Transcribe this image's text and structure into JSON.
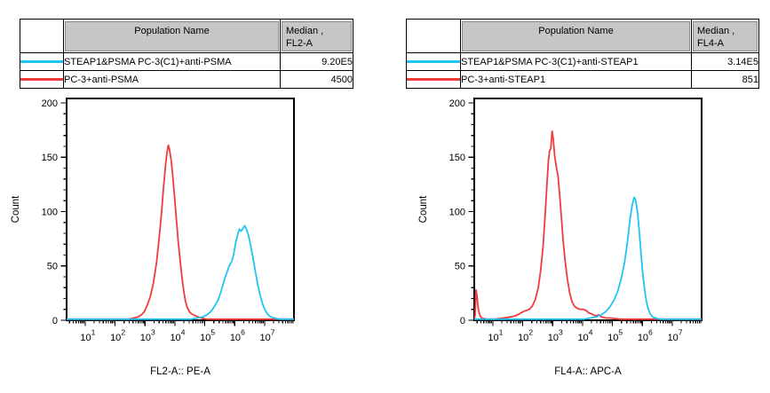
{
  "report": {
    "panels": [
      {
        "table": {
          "population_header": "Population Name",
          "median_header_line1": "Median ,",
          "median_header_line2": "FL2-A",
          "rows": [
            {
              "name": "STEAP1&PSMA PC-3(C1)+anti-PSMA",
              "median": "9.20E5",
              "series": 1
            },
            {
              "name": "PC-3+anti-PSMA",
              "median": "4500",
              "series": 0
            }
          ]
        }
      },
      {
        "table": {
          "population_header": "Population Name",
          "median_header_line1": "Median ,",
          "median_header_line2": "FL4-A",
          "rows": [
            {
              "name": "STEAP1&PSMA PC-3(C1)+anti-STEAP1",
              "median": "3.14E5",
              "series": 1
            },
            {
              "name": "PC-3+anti-STEAP1",
              "median": "851",
              "series": 0
            }
          ]
        }
      }
    ]
  },
  "chart_data": [
    {
      "type": "line",
      "subtype": "flow-cytometry-histogram-overlay",
      "title": "",
      "xlabel": "FL2-A:: PE-A",
      "ylabel": "Count",
      "xscale": "log10",
      "xlim_log10": [
        0.38,
        7.98
      ],
      "xticks_exponents": [
        1,
        2,
        3,
        4,
        5,
        6,
        7
      ],
      "ylim": [
        0,
        204
      ],
      "yticks": [
        0,
        50,
        100,
        150,
        200
      ],
      "y_minor_step": 10,
      "grid": false,
      "legend_position": "table-above",
      "series": [
        {
          "name": "PC-3+anti-PSMA",
          "color": "#F23B3B",
          "median_label": "4500",
          "points_log10x_count": [
            [
              0.38,
              1
            ],
            [
              1.2,
              1
            ],
            [
              2.0,
              1
            ],
            [
              2.45,
              1
            ],
            [
              2.62,
              2
            ],
            [
              2.76,
              3
            ],
            [
              2.88,
              5
            ],
            [
              2.98,
              8
            ],
            [
              3.08,
              14
            ],
            [
              3.18,
              22
            ],
            [
              3.28,
              34
            ],
            [
              3.38,
              52
            ],
            [
              3.47,
              75
            ],
            [
              3.55,
              98
            ],
            [
              3.62,
              122
            ],
            [
              3.68,
              141
            ],
            [
              3.73,
              153
            ],
            [
              3.78,
              161
            ],
            [
              3.82,
              157
            ],
            [
              3.87,
              148
            ],
            [
              3.93,
              132
            ],
            [
              3.99,
              113
            ],
            [
              4.05,
              93
            ],
            [
              4.11,
              73
            ],
            [
              4.17,
              56
            ],
            [
              4.23,
              41
            ],
            [
              4.29,
              28
            ],
            [
              4.35,
              18
            ],
            [
              4.41,
              12
            ],
            [
              4.48,
              8
            ],
            [
              4.55,
              6
            ],
            [
              4.62,
              5
            ],
            [
              4.7,
              4
            ],
            [
              4.78,
              3
            ],
            [
              4.88,
              2
            ],
            [
              5.05,
              1
            ],
            [
              6.0,
              1
            ],
            [
              7.0,
              1
            ],
            [
              7.98,
              1
            ]
          ]
        },
        {
          "name": "STEAP1&PSMA PC-3(C1)+anti-PSMA",
          "color": "#1EC5F2",
          "median_label": "9.20E5",
          "points_log10x_count": [
            [
              0.38,
              1
            ],
            [
              3.0,
              1
            ],
            [
              4.55,
              1
            ],
            [
              4.75,
              2
            ],
            [
              4.92,
              3
            ],
            [
              5.07,
              5
            ],
            [
              5.2,
              8
            ],
            [
              5.33,
              13
            ],
            [
              5.45,
              19
            ],
            [
              5.55,
              27
            ],
            [
              5.65,
              37
            ],
            [
              5.75,
              45
            ],
            [
              5.83,
              51
            ],
            [
              5.9,
              54
            ],
            [
              5.96,
              60
            ],
            [
              6.03,
              71
            ],
            [
              6.1,
              79
            ],
            [
              6.16,
              84
            ],
            [
              6.21,
              82
            ],
            [
              6.27,
              84
            ],
            [
              6.33,
              87
            ],
            [
              6.39,
              84
            ],
            [
              6.46,
              78
            ],
            [
              6.53,
              69
            ],
            [
              6.61,
              57
            ],
            [
              6.69,
              45
            ],
            [
              6.77,
              33
            ],
            [
              6.85,
              23
            ],
            [
              6.93,
              15
            ],
            [
              7.02,
              9
            ],
            [
              7.12,
              5
            ],
            [
              7.22,
              3
            ],
            [
              7.33,
              2
            ],
            [
              7.48,
              1
            ],
            [
              7.98,
              1
            ]
          ]
        }
      ]
    },
    {
      "type": "line",
      "subtype": "flow-cytometry-histogram-overlay",
      "title": "",
      "xlabel": "FL4-A:: APC-A",
      "ylabel": "Count",
      "xscale": "log10",
      "xlim_log10": [
        0.38,
        7.98
      ],
      "xticks_exponents": [
        1,
        2,
        3,
        4,
        5,
        6,
        7
      ],
      "ylim": [
        0,
        204
      ],
      "yticks": [
        0,
        50,
        100,
        150,
        200
      ],
      "y_minor_step": 10,
      "grid": false,
      "legend_position": "table-above",
      "series": [
        {
          "name": "PC-3+anti-STEAP1",
          "color": "#F23B3B",
          "median_label": "851",
          "points_log10x_count": [
            [
              0.38,
              1
            ],
            [
              0.41,
              5
            ],
            [
              0.44,
              28
            ],
            [
              0.47,
              23
            ],
            [
              0.51,
              11
            ],
            [
              0.56,
              5
            ],
            [
              0.63,
              2
            ],
            [
              0.78,
              1
            ],
            [
              1.05,
              1
            ],
            [
              1.35,
              2
            ],
            [
              1.58,
              3
            ],
            [
              1.75,
              4
            ],
            [
              1.9,
              6
            ],
            [
              2.02,
              8
            ],
            [
              2.12,
              9
            ],
            [
              2.22,
              10
            ],
            [
              2.32,
              13
            ],
            [
              2.42,
              19
            ],
            [
              2.52,
              30
            ],
            [
              2.6,
              46
            ],
            [
              2.68,
              68
            ],
            [
              2.75,
              97
            ],
            [
              2.81,
              126
            ],
            [
              2.86,
              147
            ],
            [
              2.9,
              156
            ],
            [
              2.94,
              158
            ],
            [
              2.98,
              174
            ],
            [
              3.02,
              167
            ],
            [
              3.07,
              151
            ],
            [
              3.13,
              140
            ],
            [
              3.18,
              133
            ],
            [
              3.23,
              117
            ],
            [
              3.29,
              96
            ],
            [
              3.35,
              74
            ],
            [
              3.42,
              54
            ],
            [
              3.49,
              38
            ],
            [
              3.57,
              25
            ],
            [
              3.65,
              17
            ],
            [
              3.73,
              13
            ],
            [
              3.82,
              11
            ],
            [
              3.92,
              10
            ],
            [
              4.02,
              10
            ],
            [
              4.12,
              9
            ],
            [
              4.2,
              7
            ],
            [
              4.28,
              6
            ],
            [
              4.36,
              5
            ],
            [
              4.45,
              4
            ],
            [
              4.54,
              5
            ],
            [
              4.64,
              3
            ],
            [
              4.78,
              2
            ],
            [
              4.95,
              2
            ],
            [
              5.25,
              1
            ],
            [
              6.2,
              1
            ],
            [
              7.98,
              1
            ]
          ]
        },
        {
          "name": "STEAP1&PSMA PC-3(C1)+anti-STEAP1",
          "color": "#1EC5F2",
          "median_label": "3.14E5",
          "points_log10x_count": [
            [
              0.38,
              1
            ],
            [
              3.0,
              1
            ],
            [
              4.05,
              1
            ],
            [
              4.25,
              2
            ],
            [
              4.45,
              3
            ],
            [
              4.62,
              5
            ],
            [
              4.78,
              8
            ],
            [
              4.93,
              13
            ],
            [
              5.06,
              19
            ],
            [
              5.18,
              27
            ],
            [
              5.3,
              39
            ],
            [
              5.41,
              54
            ],
            [
              5.51,
              74
            ],
            [
              5.59,
              94
            ],
            [
              5.66,
              106
            ],
            [
              5.72,
              113
            ],
            [
              5.77,
              111
            ],
            [
              5.83,
              101
            ],
            [
              5.89,
              84
            ],
            [
              5.95,
              63
            ],
            [
              6.01,
              44
            ],
            [
              6.07,
              29
            ],
            [
              6.13,
              18
            ],
            [
              6.19,
              11
            ],
            [
              6.26,
              6
            ],
            [
              6.34,
              3
            ],
            [
              6.44,
              2
            ],
            [
              6.58,
              1
            ],
            [
              7.0,
              1
            ],
            [
              7.98,
              1
            ]
          ]
        }
      ]
    }
  ]
}
